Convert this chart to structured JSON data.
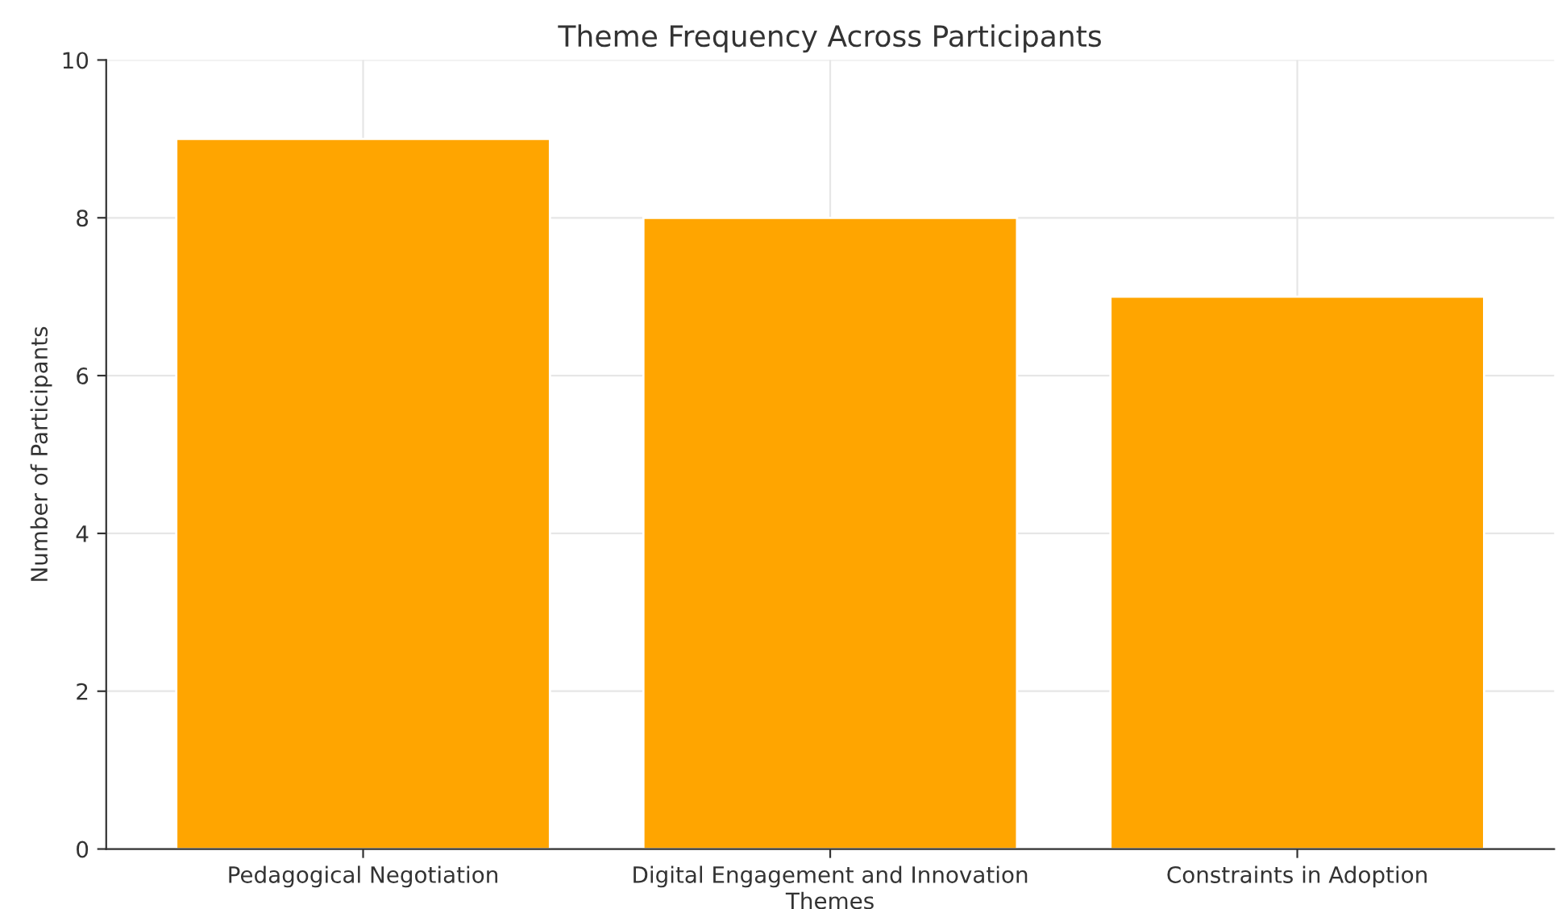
{
  "chart_data": {
    "type": "bar",
    "title": "Theme Frequency Across Participants",
    "xlabel": "Themes",
    "ylabel": "Number of Participants",
    "categories": [
      "Pedagogical Negotiation",
      "Digital Engagement and Innovation",
      "Constraints in Adoption"
    ],
    "values": [
      9,
      8,
      7
    ],
    "color": "#ffa500",
    "ylim": [
      0,
      10
    ],
    "yticks": [
      0,
      2,
      4,
      6,
      8,
      10
    ],
    "grid": true
  }
}
